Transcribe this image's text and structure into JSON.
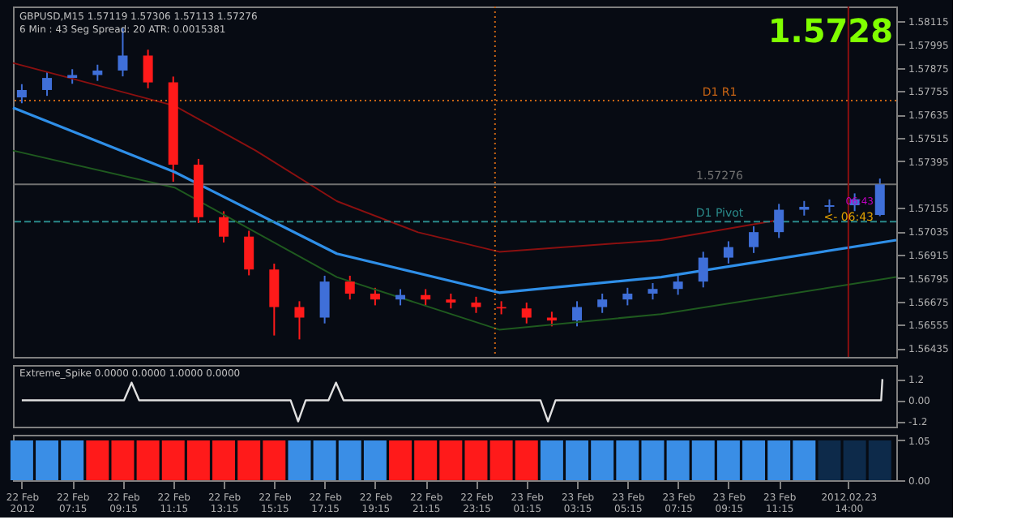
{
  "chart_data": [
    {
      "type": "candlestick",
      "title": "GBPUSD,M15  1.57119 1.57306 1.57113 1.57276",
      "subtitle": "6 Min : 43 Seg   Spread: 20   ATR: 0.0015381",
      "x": [
        "2012-02-22T05:15",
        "2012-02-22T06:15",
        "2012-02-22T07:15",
        "2012-02-22T08:15",
        "2012-02-22T09:15",
        "2012-02-22T10:15",
        "2012-02-22T11:15",
        "2012-02-22T12:15",
        "2012-02-22T13:15",
        "2012-02-22T14:15",
        "2012-02-22T15:15",
        "2012-02-22T16:15",
        "2012-02-22T17:15",
        "2012-02-22T18:15",
        "2012-02-22T19:15",
        "2012-02-22T20:15",
        "2012-02-22T21:15",
        "2012-02-22T22:15",
        "2012-02-22T23:15",
        "2012-02-23T00:15",
        "2012-02-23T01:15",
        "2012-02-23T02:15",
        "2012-02-23T03:15",
        "2012-02-23T04:15",
        "2012-02-23T05:15",
        "2012-02-23T06:15",
        "2012-02-23T07:15",
        "2012-02-23T08:15",
        "2012-02-23T09:15",
        "2012-02-23T10:15",
        "2012-02-23T11:15",
        "2012-02-23T12:15",
        "2012-02-23T13:15",
        "2012-02-23T14:15",
        "2012-02-23T15:15"
      ],
      "ohlc": [
        [
          1.57723,
          1.57791,
          1.57693,
          1.57761
        ],
        [
          1.57761,
          1.57853,
          1.57731,
          1.57823
        ],
        [
          1.57823,
          1.57868,
          1.57793,
          1.57838
        ],
        [
          1.57838,
          1.57891,
          1.57808,
          1.57861
        ],
        [
          1.57861,
          1.5808,
          1.57831,
          1.57938
        ],
        [
          1.57938,
          1.57968,
          1.5777,
          1.578
        ],
        [
          1.578,
          1.5783,
          1.5729,
          1.57377
        ],
        [
          1.57377,
          1.57407,
          1.57078,
          1.57108
        ],
        [
          1.57108,
          1.57138,
          1.56978,
          1.57008
        ],
        [
          1.57008,
          1.57038,
          1.56809,
          1.56839
        ],
        [
          1.56839,
          1.56869,
          1.565,
          1.56646
        ],
        [
          1.56646,
          1.56676,
          1.5648,
          1.56592
        ],
        [
          1.56592,
          1.56807,
          1.56562,
          1.56777
        ],
        [
          1.56777,
          1.56807,
          1.56685,
          1.56715
        ],
        [
          1.56715,
          1.56745,
          1.56655,
          1.56685
        ],
        [
          1.56685,
          1.56738,
          1.56655,
          1.56708
        ],
        [
          1.56708,
          1.56738,
          1.56655,
          1.56685
        ],
        [
          1.56685,
          1.56715,
          1.56639,
          1.56669
        ],
        [
          1.56669,
          1.56699,
          1.56616,
          1.56646
        ],
        [
          1.56646,
          1.56676,
          1.56609,
          1.56639
        ],
        [
          1.56639,
          1.56669,
          1.56562,
          1.56592
        ],
        [
          1.56592,
          1.56622,
          1.56547,
          1.56577
        ],
        [
          1.56577,
          1.56676,
          1.56547,
          1.56646
        ],
        [
          1.56646,
          1.56715,
          1.56616,
          1.56685
        ],
        [
          1.56685,
          1.56745,
          1.56655,
          1.56715
        ],
        [
          1.56715,
          1.56769,
          1.56685,
          1.56739
        ],
        [
          1.56739,
          1.56807,
          1.56709,
          1.56777
        ],
        [
          1.56777,
          1.5693,
          1.56747,
          1.569
        ],
        [
          1.569,
          1.56984,
          1.5687,
          1.56954
        ],
        [
          1.56954,
          1.57061,
          1.56924,
          1.57031
        ],
        [
          1.57031,
          1.57176,
          1.57001,
          1.57146
        ],
        [
          1.57146,
          1.57191,
          1.57116,
          1.57161
        ],
        [
          1.57161,
          1.57199,
          1.57131,
          1.57169
        ],
        [
          1.57169,
          1.5723,
          1.57139,
          1.572
        ],
        [
          1.57119,
          1.57306,
          1.57113,
          1.57276
        ]
      ],
      "colors": [
        "#3f6fd8",
        "#3f6fd8",
        "#3f6fd8",
        "#3f6fd8",
        "#3f6fd8",
        "#ff1a1a",
        "#ff1a1a",
        "#ff1a1a",
        "#ff1a1a",
        "#ff1a1a",
        "#ff1a1a",
        "#ff1a1a",
        "#3f6fd8",
        "#ff1a1a",
        "#ff1a1a",
        "#3f6fd8",
        "#ff1a1a",
        "#ff1a1a",
        "#ff1a1a",
        "#ff1a1a",
        "#ff1a1a",
        "#ff1a1a",
        "#3f6fd8",
        "#3f6fd8",
        "#3f6fd8",
        "#3f6fd8",
        "#3f6fd8",
        "#3f6fd8",
        "#3f6fd8",
        "#3f6fd8",
        "#3f6fd8",
        "#3f6fd8",
        "#3f6fd8",
        "#3f6fd8",
        "#3f6fd8"
      ],
      "series": [
        {
          "type": "line",
          "color": "#8b1010",
          "x": [
            "2012-02-22T04:54",
            "2012-02-22T11:18",
            "2012-02-22T14:31",
            "2012-02-22T17:44",
            "2012-02-22T20:57",
            "2012-02-23T00:10",
            "2012-02-23T06:35",
            "2012-02-23T11:06"
          ],
          "values": [
            1.579,
            1.5768,
            1.5745,
            1.5719,
            1.5703,
            1.5693,
            1.5699,
            1.5709
          ]
        },
        {
          "type": "line",
          "color": "#2f8fe8",
          "x": [
            "2012-02-22T04:54",
            "2012-02-22T11:18",
            "2012-02-22T17:44",
            "2012-02-23T00:10",
            "2012-02-23T06:35",
            "2012-02-23T15:54"
          ],
          "values": [
            1.5767,
            1.5734,
            1.5692,
            1.5672,
            1.568,
            1.5699
          ]
        },
        {
          "type": "line",
          "color": "#1f5a1f",
          "x": [
            "2012-02-22T04:54",
            "2012-02-22T11:18",
            "2012-02-22T17:44",
            "2012-02-23T00:10",
            "2012-02-23T06:35",
            "2012-02-23T15:54"
          ],
          "values": [
            1.5745,
            1.5726,
            1.568,
            1.5653,
            1.5661,
            1.568
          ]
        }
      ],
      "xlim": [
        "2012-02-22T04:54",
        "2012-02-23T15:54"
      ],
      "ylim": [
        1.5639,
        1.5819
      ],
      "yticks": [
        1.58115,
        1.57995,
        1.57875,
        1.57755,
        1.57635,
        1.57515,
        1.57395,
        1.57155,
        1.57035,
        1.56915,
        1.56795,
        1.56675,
        1.56555,
        1.56435
      ],
      "ref_lines": [
        {
          "axis": "y",
          "value": 1.57707,
          "label": "D1 R1",
          "color": "#c86414",
          "line_style": "dotted"
        },
        {
          "axis": "y",
          "value": 1.57085,
          "label": "D1 Pivot",
          "color": "#2a8a8a",
          "line_style": "dashed"
        },
        {
          "axis": "y",
          "value": 1.57276,
          "label": "1.57276",
          "color": "#707070",
          "line_style": "solid"
        },
        {
          "axis": "x",
          "value": "2012-02-23T00:00",
          "label": null,
          "color": "#c86414",
          "line_style": "dotted"
        },
        {
          "axis": "x",
          "value": "2012-02-23T14:00",
          "label": null,
          "color": "#8b1010",
          "line_style": "solid"
        }
      ],
      "annotations": [
        "1.5728",
        "<- 06:43",
        "06:43"
      ],
      "tick_labels": "y",
      "grid": false
    },
    {
      "type": "line",
      "title": "Extreme_Spike 0.0000 0.0000 1.0000 0.0000",
      "series": [
        {
          "color": "#e0e0e0",
          "x": [
            "2012-02-22T05:15",
            "2012-02-22T09:18",
            "2012-02-22T09:36",
            "2012-02-22T09:54",
            "2012-02-22T15:54",
            "2012-02-22T16:12",
            "2012-02-22T16:30",
            "2012-02-22T17:24",
            "2012-02-22T17:42",
            "2012-02-22T18:00",
            "2012-02-23T01:48",
            "2012-02-23T02:06",
            "2012-02-23T02:24",
            "2012-02-23T15:18",
            "2012-02-23T15:21"
          ],
          "values": [
            0,
            0,
            1.0,
            0,
            0,
            -1.2,
            0,
            0,
            1.0,
            0,
            0,
            -1.2,
            0,
            0,
            1.2
          ]
        }
      ],
      "xlim": [
        "2012-02-22T04:54",
        "2012-02-23T15:54"
      ],
      "ylim": [
        -1.5,
        2.0
      ],
      "yticks": [
        {
          "value": 1.2,
          "label": "1.2"
        },
        {
          "value": 0,
          "label": "0.00"
        },
        {
          "value": -1.2,
          "label": "-1.2"
        }
      ],
      "tick_labels": "y",
      "grid": false
    },
    {
      "type": "bar",
      "x": [
        "2012-02-22T05:15",
        "2012-02-22T06:15",
        "2012-02-22T07:15",
        "2012-02-22T08:15",
        "2012-02-22T09:15",
        "2012-02-22T10:15",
        "2012-02-22T11:15",
        "2012-02-22T12:15",
        "2012-02-22T13:15",
        "2012-02-22T14:15",
        "2012-02-22T15:15",
        "2012-02-22T16:15",
        "2012-02-22T17:15",
        "2012-02-22T18:15",
        "2012-02-22T19:15",
        "2012-02-22T20:15",
        "2012-02-22T21:15",
        "2012-02-22T22:15",
        "2012-02-22T23:15",
        "2012-02-23T00:15",
        "2012-02-23T01:15",
        "2012-02-23T02:15",
        "2012-02-23T03:15",
        "2012-02-23T04:15",
        "2012-02-23T05:15",
        "2012-02-23T06:15",
        "2012-02-23T07:15",
        "2012-02-23T08:15",
        "2012-02-23T09:15",
        "2012-02-23T10:15",
        "2012-02-23T11:15",
        "2012-02-23T12:15",
        "2012-02-23T13:15",
        "2012-02-23T14:15",
        "2012-02-23T15:15"
      ],
      "values": [
        1.05,
        1.05,
        1.05,
        1.05,
        1.05,
        1.05,
        1.05,
        1.05,
        1.05,
        1.05,
        1.05,
        1.05,
        1.05,
        1.05,
        1.05,
        1.05,
        1.05,
        1.05,
        1.05,
        1.05,
        1.05,
        1.05,
        1.05,
        1.05,
        1.05,
        1.05,
        1.05,
        1.05,
        1.05,
        1.05,
        1.05,
        1.05,
        1.05,
        1.05,
        1.05
      ],
      "colors": [
        "#3a8ee6",
        "#3a8ee6",
        "#3a8ee6",
        "#ff1a1a",
        "#ff1a1a",
        "#ff1a1a",
        "#ff1a1a",
        "#ff1a1a",
        "#ff1a1a",
        "#ff1a1a",
        "#ff1a1a",
        "#3a8ee6",
        "#3a8ee6",
        "#3a8ee6",
        "#3a8ee6",
        "#ff1a1a",
        "#ff1a1a",
        "#ff1a1a",
        "#ff1a1a",
        "#ff1a1a",
        "#ff1a1a",
        "#3a8ee6",
        "#3a8ee6",
        "#3a8ee6",
        "#3a8ee6",
        "#3a8ee6",
        "#3a8ee6",
        "#3a8ee6",
        "#3a8ee6",
        "#3a8ee6",
        "#3a8ee6",
        "#3a8ee6",
        "#0d2a4a",
        "#0d2a4a",
        "#0d2a4a"
      ],
      "xlim": [
        "2012-02-22T04:54",
        "2012-02-23T15:54"
      ],
      "ylim": [
        0,
        1.2
      ],
      "yticks": [
        {
          "value": 1.05,
          "label": "1.05"
        },
        {
          "value": 0,
          "label": "0.00"
        }
      ],
      "xticks": [
        {
          "value": "2012-02-22T05:15",
          "label": "22 Feb 2012"
        },
        {
          "value": "2012-02-22T07:15",
          "label": "22 Feb 07:15"
        },
        {
          "value": "2012-02-22T09:15",
          "label": "22 Feb 09:15"
        },
        {
          "value": "2012-02-22T11:15",
          "label": "22 Feb 11:15"
        },
        {
          "value": "2012-02-22T13:15",
          "label": "22 Feb 13:15"
        },
        {
          "value": "2012-02-22T15:15",
          "label": "22 Feb 15:15"
        },
        {
          "value": "2012-02-22T17:15",
          "label": "22 Feb 17:15"
        },
        {
          "value": "2012-02-22T19:15",
          "label": "22 Feb 19:15"
        },
        {
          "value": "2012-02-22T21:15",
          "label": "22 Feb 21:15"
        },
        {
          "value": "2012-02-22T23:15",
          "label": "22 Feb 23:15"
        },
        {
          "value": "2012-02-23T01:15",
          "label": "23 Feb 01:15"
        },
        {
          "value": "2012-02-23T03:15",
          "label": "23 Feb 03:15"
        },
        {
          "value": "2012-02-23T05:15",
          "label": "23 Feb 05:15"
        },
        {
          "value": "2012-02-23T07:15",
          "label": "23 Feb 07:15"
        },
        {
          "value": "2012-02-23T09:15",
          "label": "23 Feb 09:15"
        },
        {
          "value": "2012-02-23T11:15",
          "label": "23 Feb 11:15"
        },
        {
          "value": "2012-02-23T14:00",
          "label": "2012.02.23 14:00"
        }
      ],
      "grid": false
    }
  ]
}
